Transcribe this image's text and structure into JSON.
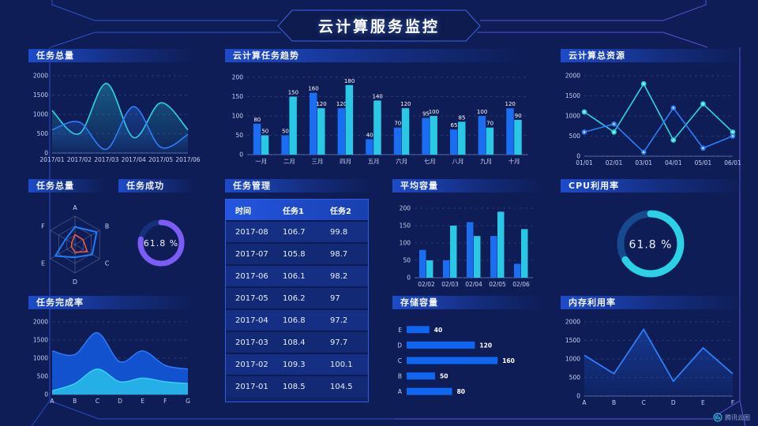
{
  "header": {
    "title": "云计算服务监控"
  },
  "watermark": {
    "label": "腾讯云图",
    "icon": "cloud-chart-logo-icon"
  },
  "theme": {
    "background": "#0e1d56",
    "accent_blue": "#1b6df2",
    "accent_cyan": "#29c8e4",
    "accent_purple": "#7b5cf7",
    "frame_blue": "#2b4ec6",
    "frame_purple": "#5f55d6"
  },
  "panels": {
    "task_total": {
      "title": "任务总量"
    },
    "task_trend": {
      "title": "云计算任务趋势"
    },
    "cloud_resources": {
      "title": "云计算总资源"
    },
    "task_total_radar": {
      "title": "任务总量"
    },
    "task_success": {
      "title": "任务成功"
    },
    "task_management": {
      "title": "任务管理"
    },
    "avg_capacity": {
      "title": "平均容量"
    },
    "cpu_usage": {
      "title": "CPU利用率"
    },
    "task_completion": {
      "title": "任务完成率"
    },
    "storage_capacity": {
      "title": "存储容量"
    },
    "memory_usage": {
      "title": "内存利用率"
    }
  },
  "table": {
    "columns": [
      "时间",
      "任务1",
      "任务2"
    ],
    "rows": [
      [
        "2017-08",
        "106.7",
        "99.8"
      ],
      [
        "2017-07",
        "105.8",
        "98.7"
      ],
      [
        "2017-06",
        "106.1",
        "98.2"
      ],
      [
        "2017-05",
        "106.2",
        "97"
      ],
      [
        "2017-04",
        "106.8",
        "97.2"
      ],
      [
        "2017-03",
        "108.4",
        "97.7"
      ],
      [
        "2017-02",
        "109.3",
        "100.1"
      ],
      [
        "2017-01",
        "108.5",
        "104.5"
      ]
    ]
  },
  "chart_data": [
    {
      "id": "task-total-area",
      "type": "area_smooth",
      "title": "任务总量",
      "x": [
        "2017/01",
        "2017/02",
        "2017/03",
        "2017/04",
        "2017/05",
        "2017/06"
      ],
      "ylim": [
        0,
        2000
      ],
      "yticks": [
        0,
        500,
        1000,
        1500,
        2000
      ],
      "series": [
        {
          "name": "series-cyan",
          "color": "#2bd8de",
          "values": [
            1100,
            500,
            1800,
            400,
            1300,
            600
          ]
        },
        {
          "name": "series-blue",
          "color": "#2e7ef8",
          "values": [
            600,
            800,
            100,
            1200,
            150,
            480
          ]
        }
      ]
    },
    {
      "id": "task-trend-bars",
      "type": "bar_grouped",
      "title": "云计算任务趋势",
      "x": [
        "一月",
        "二月",
        "三月",
        "四月",
        "五月",
        "六月",
        "七月",
        "八月",
        "九月",
        "十月"
      ],
      "ylim": [
        0,
        200
      ],
      "yticks": [
        0,
        50,
        100,
        150,
        200
      ],
      "show_labels": true,
      "series": [
        {
          "name": "任务1",
          "color": "#1b6df2",
          "values": [
            80,
            50,
            160,
            120,
            40,
            70,
            95,
            65,
            100,
            120
          ]
        },
        {
          "name": "任务2",
          "color": "#29c8e4",
          "values": [
            50,
            150,
            120,
            180,
            140,
            120,
            100,
            85,
            70,
            90
          ]
        }
      ]
    },
    {
      "id": "cloud-resources-line",
      "type": "line_points",
      "title": "云计算总资源",
      "x": [
        "01/01",
        "02/01",
        "03/01",
        "04/01",
        "05/01",
        "06/01"
      ],
      "ylim": [
        0,
        2000
      ],
      "yticks": [
        0,
        500,
        1000,
        1500,
        2000
      ],
      "series": [
        {
          "name": "series-cyan",
          "color": "#2bd8de",
          "values": [
            1100,
            600,
            1800,
            400,
            1300,
            600
          ]
        },
        {
          "name": "series-blue",
          "color": "#2e7ef8",
          "values": [
            600,
            800,
            100,
            1200,
            200,
            500
          ]
        }
      ]
    },
    {
      "id": "task-total-radar",
      "type": "radar",
      "title": "任务总量",
      "axes": [
        "A",
        "B",
        "C",
        "D",
        "E",
        "F"
      ],
      "max": 100,
      "series": [
        {
          "name": "blue-polygon",
          "color": "#1f7df8",
          "values": [
            62,
            88,
            70,
            45,
            80,
            38
          ]
        },
        {
          "name": "orange-polygon",
          "color": "#ff5b38",
          "values": [
            35,
            33,
            50,
            27,
            15,
            13
          ]
        }
      ]
    },
    {
      "id": "task-success-donut",
      "type": "donut",
      "title": "任务成功",
      "value": 61.8,
      "label": "61.8 %",
      "sweep": 0.78,
      "color": "#7b5cf7",
      "track": "#16307c",
      "thickness": 7,
      "radius": 26,
      "font": 11
    },
    {
      "id": "cpu-usage-donut",
      "type": "donut",
      "title": "CPU利用率",
      "value": 61.8,
      "label": "61.8 %",
      "sweep": 0.66,
      "color": "#2bd2e6",
      "track": "#17498e",
      "thickness": 9,
      "radius": 38,
      "font": 14
    },
    {
      "id": "avg-capacity-bars",
      "type": "bar_grouped",
      "title": "平均容量",
      "x": [
        "02/02",
        "02/03",
        "02/04",
        "02/05",
        "02/06"
      ],
      "ylim": [
        0,
        200
      ],
      "yticks": [
        0,
        50,
        100,
        150,
        200
      ],
      "show_labels": false,
      "series": [
        {
          "name": "series-blue",
          "color": "#1b6df2",
          "values": [
            80,
            50,
            160,
            120,
            40
          ]
        },
        {
          "name": "series-cyan",
          "color": "#29c8e4",
          "values": [
            50,
            150,
            120,
            190,
            140
          ]
        }
      ]
    },
    {
      "id": "task-completion-area",
      "type": "area_stacked",
      "title": "任务完成率",
      "x": [
        "A",
        "B",
        "C",
        "D",
        "E",
        "F",
        "G"
      ],
      "ylim": [
        0,
        2000
      ],
      "yticks": [
        0,
        500,
        1000,
        1500,
        2000
      ],
      "series": [
        {
          "name": "blue-area",
          "color": "#1356d8",
          "line": "#2f7dff",
          "values": [
            1200,
            1100,
            1700,
            900,
            1200,
            800,
            700
          ]
        },
        {
          "name": "cyan-area",
          "color": "#27b6e8",
          "line": "#3bd4f2",
          "values": [
            100,
            300,
            700,
            350,
            450,
            350,
            300
          ]
        }
      ]
    },
    {
      "id": "storage-capacity-hbar",
      "type": "bar_horizontal",
      "title": "存储容量",
      "categories": [
        "E",
        "D",
        "C",
        "B",
        "A"
      ],
      "values": [
        40,
        120,
        160,
        50,
        80
      ],
      "xmax": 175,
      "color": "#0f66f0"
    },
    {
      "id": "memory-usage-line",
      "type": "line_area",
      "title": "内存利用率",
      "x": [
        "A",
        "B",
        "C",
        "D",
        "E",
        "F"
      ],
      "ylim": [
        0,
        2000
      ],
      "yticks": [
        0,
        500,
        1000,
        1500,
        2000
      ],
      "series": [
        {
          "name": "memory",
          "color": "#2e7ef8",
          "fill": "#1b4fc0",
          "values": [
            1100,
            600,
            1800,
            400,
            1300,
            600
          ]
        }
      ]
    }
  ]
}
